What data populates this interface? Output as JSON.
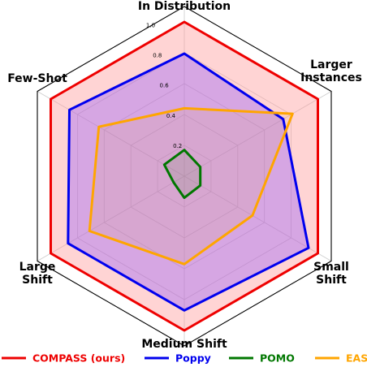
{
  "chart_data": {
    "type": "radar",
    "axes": [
      "In Distribution",
      "Larger Instances",
      "Small Shift",
      "Medium Shift",
      "Large Shift",
      "Few-Shot"
    ],
    "axis_label_lines": [
      [
        "In Distribution"
      ],
      [
        "Larger",
        "Instances"
      ],
      [
        "Small",
        "Shift"
      ],
      [
        "Medium Shift"
      ],
      [
        "Large",
        "Shift"
      ],
      [
        "Few-Shot"
      ]
    ],
    "rlim": [
      0,
      1.1
    ],
    "rticks": [
      0.2,
      0.4,
      0.6,
      0.8,
      1.0
    ],
    "rtick_labels": [
      "0.2",
      "0.4",
      "0.6",
      "0.8",
      "1.0"
    ],
    "grid": true,
    "legend_position": "bottom",
    "series": [
      {
        "name": "COMPASS (ours)",
        "color": "#ee0000",
        "fill": "#ff9999",
        "fill_opacity": 0.42,
        "values": [
          1.0,
          1.0,
          1.0,
          1.0,
          1.0,
          1.0
        ]
      },
      {
        "name": "Poppy",
        "color": "#0000ee",
        "fill": "#8a4fff",
        "fill_opacity": 0.35,
        "values": [
          0.795,
          0.74,
          0.93,
          0.87,
          0.87,
          0.86
        ]
      },
      {
        "name": "POMO",
        "color": "#007700",
        "fill": "#2e7d32",
        "fill_opacity": 0.12,
        "values": [
          0.17,
          0.12,
          0.12,
          0.14,
          0.08,
          0.15
        ]
      },
      {
        "name": "EAS",
        "color": "#ffa500",
        "fill": "#e0a94a",
        "fill_opacity": 0.12,
        "values": [
          0.44,
          0.81,
          0.51,
          0.57,
          0.71,
          0.64
        ]
      }
    ]
  }
}
